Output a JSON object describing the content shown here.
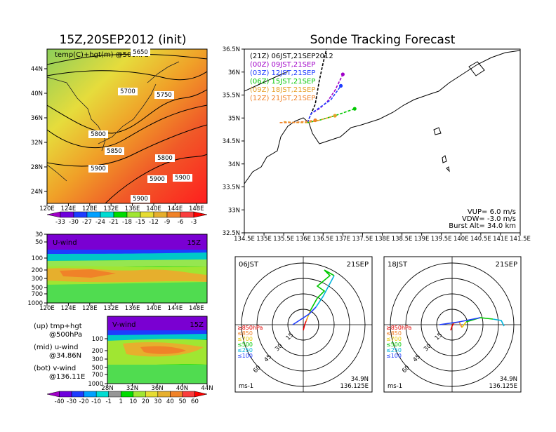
{
  "left_title": "15Z,20SEP2012 (init)",
  "right_title": "Sonde Tracking Forecast",
  "temp_map": {
    "label": "temp(C)+hgt(m) @500hPa",
    "x_ticks": [
      "120E",
      "124E",
      "128E",
      "132E",
      "136E",
      "140E",
      "144E",
      "148E"
    ],
    "y_ticks": [
      "44N",
      "40N",
      "36N",
      "32N",
      "28N",
      "24N"
    ],
    "contour_labels": [
      "5650",
      "5700",
      "5750",
      "5800",
      "5850",
      "5900",
      "5800",
      "5900",
      "5900",
      "5900"
    ],
    "colorbar_labels": [
      "-33",
      "-30",
      "-27",
      "-24",
      "-21",
      "-18",
      "-15",
      "-12",
      "-9",
      "-6",
      "-3"
    ],
    "colorbar_colors": [
      "#a000c8",
      "#6e00dc",
      "#1e3cff",
      "#00a0ff",
      "#00dcd2",
      "#00dc00",
      "#a0e632",
      "#e6dc32",
      "#e6af2d",
      "#f08228",
      "#fa3c3c",
      "#ff0000"
    ]
  },
  "uwind_panel": {
    "title": "U-wind",
    "time": "15Z",
    "y_ticks": [
      "30",
      "50",
      "100",
      "200",
      "300",
      "500",
      "700",
      "1000"
    ],
    "x_ticks": [
      "120E",
      "124E",
      "128E",
      "132E",
      "136E",
      "140E",
      "144E",
      "148E"
    ]
  },
  "vwind_panel": {
    "title": "V-wind",
    "time": "15Z",
    "y_ticks": [
      "100",
      "200",
      "300",
      "500",
      "700",
      "1000"
    ],
    "x_ticks": [
      "28N",
      "32N",
      "36N",
      "40N",
      "44N"
    ],
    "colorbar_labels": [
      "-40",
      "-30",
      "-20",
      "-10",
      "-1",
      "1",
      "10",
      "20",
      "30",
      "40",
      "50",
      "60"
    ],
    "colorbar_colors": [
      "#a000c8",
      "#6e00dc",
      "#1e3cff",
      "#00a0ff",
      "#00dcd2",
      "#969696",
      "#00dc00",
      "#a0e632",
      "#e6dc32",
      "#e6af2d",
      "#f08228",
      "#fa3c3c",
      "#ff0000"
    ]
  },
  "legend_notes": [
    {
      "head": "(up) tmp+hgt",
      "sub": "@500hPa"
    },
    {
      "head": "(mid) u-wind",
      "sub": "@34.86N"
    },
    {
      "head": "(bot) v-wind",
      "sub": "@136.11E"
    }
  ],
  "track_map": {
    "y_ticks": [
      "36.5N",
      "36N",
      "35.5N",
      "35N",
      "34.5N",
      "34N",
      "33.5N",
      "33N",
      "32.5N"
    ],
    "x_ticks": [
      "134.5E",
      "135E",
      "135.5E",
      "136E",
      "136.5E",
      "137E",
      "137.5E",
      "138E",
      "138.5E",
      "139E",
      "139.5E",
      "140E",
      "140.5E",
      "141E",
      "141.5E"
    ],
    "legend": [
      {
        "text": "(21Z)  06JST,21SEP2012",
        "color": "#000000"
      },
      {
        "text": "(00Z)  09JST,21SEP",
        "color": "#a000c8"
      },
      {
        "text": "(03Z)  12JST,21SEP",
        "color": "#1e3cff"
      },
      {
        "text": "(06Z)  15JST,21SEP",
        "color": "#00c800"
      },
      {
        "text": "(09Z)  18JST,21SEP",
        "color": "#e6a028"
      },
      {
        "text": "(12Z)  21JST,21SEP",
        "color": "#f08228"
      }
    ],
    "params": [
      "VUP=  6.0  m/s",
      "VDW= -3.0  m/s",
      "Burst Alt=  34.0  km"
    ]
  },
  "hodograph_06": {
    "time": "06JST",
    "date": "21SEP",
    "ring_labels": [
      "15",
      "30",
      "45",
      "60"
    ],
    "levels": [
      {
        "text": "≥850hPa",
        "color": "#e60000"
      },
      {
        "text": "≤850",
        "color": "#f08228"
      },
      {
        "text": "≤700",
        "color": "#e6c800"
      },
      {
        "text": "≤500",
        "color": "#00c800"
      },
      {
        "text": "≤250",
        "color": "#00b4dc"
      },
      {
        "text": "≤100",
        "color": "#1e3cff"
      }
    ],
    "unit": "ms-1",
    "lat": "34.9N",
    "lon": "136.125E"
  },
  "hodograph_18": {
    "time": "18JST",
    "date": "21SEP",
    "ring_labels": [
      "15",
      "30",
      "45",
      "60"
    ],
    "levels": [
      {
        "text": "≥850hPa",
        "color": "#e60000"
      },
      {
        "text": "≤850",
        "color": "#f08228"
      },
      {
        "text": "≤700",
        "color": "#e6c800"
      },
      {
        "text": "≤500",
        "color": "#00c800"
      },
      {
        "text": "≤250",
        "color": "#00b4dc"
      },
      {
        "text": "≤100",
        "color": "#1e3cff"
      }
    ],
    "unit": "ms-1",
    "lat": "34.9N",
    "lon": "136.125E"
  },
  "chart_data": [
    {
      "type": "heatmap",
      "title": "temp(C)+hgt(m) @500hPa",
      "x_range": [
        120,
        150
      ],
      "y_range": [
        22,
        48
      ],
      "contour_levels_m": [
        5650,
        5700,
        5750,
        5800,
        5850,
        5900
      ],
      "colorbar_C": [
        -33,
        -30,
        -27,
        -24,
        -21,
        -18,
        -15,
        -12,
        -9,
        -6,
        -3
      ]
    },
    {
      "type": "heatmap",
      "title": "U-wind",
      "x_range": [
        120,
        150
      ],
      "levels_hPa": [
        30,
        50,
        100,
        200,
        300,
        500,
        700,
        1000
      ]
    },
    {
      "type": "heatmap",
      "title": "V-wind",
      "x_range": [
        28,
        44
      ],
      "levels_hPa": [
        100,
        200,
        300,
        500,
        700,
        1000
      ],
      "colorbar_ms": [
        -40,
        -30,
        -20,
        -10,
        -1,
        1,
        10,
        20,
        30,
        40,
        50,
        60
      ]
    },
    {
      "type": "line",
      "title": "Sonde Tracking Forecast",
      "x_range": [
        134.5,
        141.5
      ],
      "y_range": [
        32.5,
        36.5
      ],
      "launch": [
        136.1,
        34.9
      ],
      "series": [
        {
          "name": "(21Z)  06JST,21SEP2012",
          "lon": [
            136.1,
            136.3,
            136.4,
            136.5,
            136.6
          ],
          "lat": [
            34.9,
            35.3,
            35.8,
            36.2,
            36.55
          ]
        },
        {
          "name": "(00Z)  09JST,21SEP",
          "lon": [
            136.1,
            136.2,
            136.4,
            136.6,
            136.8,
            137.0
          ],
          "lat": [
            34.9,
            35.1,
            35.2,
            35.35,
            35.6,
            35.95
          ]
        },
        {
          "name": "(03Z)  12JST,21SEP",
          "lon": [
            136.1,
            136.2,
            136.45,
            136.7,
            136.95
          ],
          "lat": [
            34.9,
            35.1,
            35.25,
            35.4,
            35.7
          ]
        },
        {
          "name": "(06Z)  15JST,21SEP",
          "lon": [
            136.1,
            136.4,
            136.8,
            137.3
          ],
          "lat": [
            34.9,
            34.95,
            35.05,
            35.2
          ]
        },
        {
          "name": "(09Z)  18JST,21SEP",
          "lon": [
            135.5,
            135.8,
            136.1,
            136.4,
            136.8
          ],
          "lat": [
            34.92,
            34.9,
            34.9,
            34.95,
            35.05
          ]
        },
        {
          "name": "(12Z)  21JST,21SEP",
          "lon": [
            135.4,
            135.7,
            136.0,
            136.3
          ],
          "lat": [
            34.9,
            34.9,
            34.92,
            34.95
          ]
        }
      ]
    }
  ]
}
